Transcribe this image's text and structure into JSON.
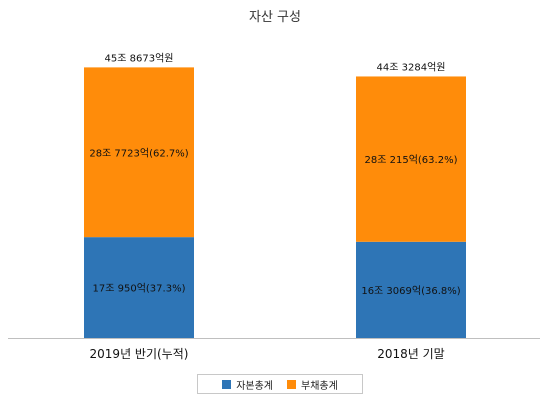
{
  "chart_data": {
    "type": "bar",
    "stacked": true,
    "title": "자산 구성",
    "categories": [
      "2019년 반기(누적)",
      "2018년 기말"
    ],
    "series": [
      {
        "name": "자본총계",
        "color": "#2E75B6",
        "values": [
          17.095,
          16.3069
        ],
        "labels": [
          "17조 950억(37.3%)",
          "16조 3069억(36.8%)"
        ]
      },
      {
        "name": "부채총계",
        "color": "#FF8C0A",
        "values": [
          28.7723,
          28.0215
        ],
        "labels": [
          "28조 7723억(62.7%)",
          "28조 215억(63.2%)"
        ]
      }
    ],
    "totals": {
      "values": [
        45.8673,
        44.3284
      ],
      "labels": [
        "45조 8673억원",
        "44조 3284억원"
      ]
    },
    "ylim": [
      0,
      50
    ],
    "unit": "조원",
    "grid": false,
    "legend_position": "bottom"
  }
}
